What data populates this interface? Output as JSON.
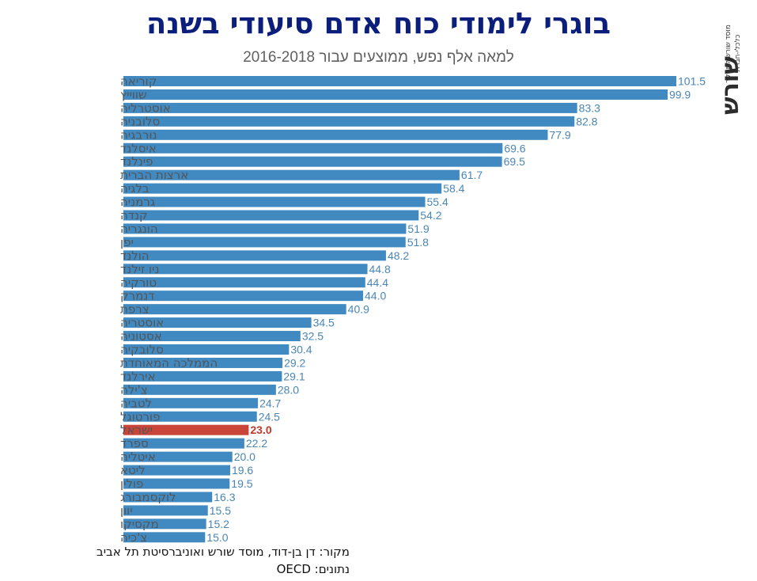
{
  "header": {
    "title": "בוגרי לימודי כוח אדם סיעודי בשנה",
    "subtitle": "למאה אלף נפש, ממוצעים עבור 2016-2018"
  },
  "logo": {
    "word": "שורש",
    "tagline": "מוסד שורש למחקר כלכלי-חברתי"
  },
  "footer": {
    "source": "מקור:  דן בן-דוד, מוסד שורש ואוניברסיטת תל אביב",
    "data": "נתונים: OECD"
  },
  "colors": {
    "bar": "#4189c1",
    "highlight": "#c9453a",
    "title": "#0b1e7c"
  },
  "chart_data": {
    "type": "bar",
    "orientation": "horizontal",
    "title": "בוגרי לימודי כוח אדם סיעודי בשנה",
    "subtitle": "למאה אלף נפש, ממוצעים עבור 2016-2018",
    "highlight": "ישראל",
    "categories": [
      "קוריאה",
      "שווייץ",
      "אוסטרליה",
      "סלובניה",
      "נורבגיה",
      "איסלנד",
      "פינלנד",
      "ארצות הברית",
      "בלגיה",
      "גרמניה",
      "קנדה",
      "הונגריה",
      "יפן",
      "הולנד",
      "ניו זילנד",
      "טורקיה",
      "דנמרק",
      "צרפת",
      "אוסטריה",
      "אסטוניה",
      "סלובקיה",
      "הממלכה המאוחדת",
      "אירלנד",
      "צ'ילה",
      "לטביה",
      "פורטוגל",
      "ישראל",
      "ספרד",
      "איטליה",
      "ליטא",
      "פולין",
      "לוקסמבורג",
      "יוון",
      "מקסיקו",
      "צ'כיה"
    ],
    "values": [
      101.5,
      99.9,
      83.3,
      82.8,
      77.9,
      69.6,
      69.5,
      61.7,
      58.4,
      55.4,
      54.2,
      51.9,
      51.8,
      48.2,
      44.8,
      44.4,
      44.0,
      40.9,
      34.5,
      32.5,
      30.4,
      29.2,
      29.1,
      28.0,
      24.7,
      24.5,
      23.0,
      22.2,
      20.0,
      19.6,
      19.5,
      16.3,
      15.5,
      15.2,
      15.0
    ],
    "value_labels": [
      "101.5",
      "99.9",
      "83.3",
      "82.8",
      "77.9",
      "69.6",
      "69.5",
      "61.7",
      "58.4",
      "55.4",
      "54.2",
      "51.9",
      "51.8",
      "48.2",
      "44.8",
      "44.4",
      "44.0",
      "40.9",
      "34.5",
      "32.5",
      "30.4",
      "29.2",
      "29.1",
      "28.0",
      "24.7",
      "24.5",
      "23.0",
      "22.2",
      "20.0",
      "19.6",
      "19.5",
      "16.3",
      "15.5",
      "15.2",
      "15.0"
    ],
    "xlim": [
      0,
      101.5
    ],
    "grid": false,
    "legend": false
  }
}
